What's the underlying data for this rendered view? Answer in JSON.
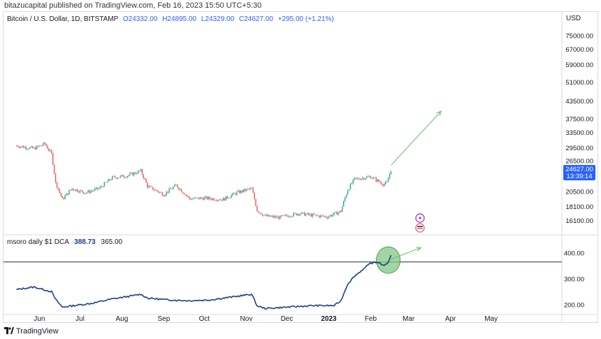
{
  "header": {
    "publisher": "bitazucapital published on TradingView.com, Feb 16, 2023 15:50 UTC+5:30",
    "symbol": "Bitcoin / U.S. Dollar, 1D, BITSTAMP",
    "open": "O24332.00",
    "high": "H24895.00",
    "low": "L24329.00",
    "close": "C24627.00",
    "change": "+295.00 (+1.21%)"
  },
  "price_axis": {
    "currency": "USD",
    "ticks": [
      "75000.00",
      "67000.00",
      "59000.00",
      "51000.00",
      "43500.00",
      "37500.00",
      "33500.00",
      "29500.00",
      "26500.00",
      "20500.00",
      "18100.00",
      "16100.00"
    ],
    "last_price": "24627.00",
    "countdown": "13:39:14"
  },
  "indicator": {
    "name": "msoro daily $1 DCA",
    "value1": "388.73",
    "value2": "365.00",
    "ticks": [
      "400.00",
      "300.00",
      "200.00"
    ]
  },
  "time_axis": [
    "Jun",
    "Jul",
    "Aug",
    "Sep",
    "Oct",
    "Nov",
    "Dec",
    "2023",
    "Feb",
    "Mar",
    "Apr",
    "May"
  ],
  "footer": {
    "brand": "TradingView"
  },
  "colors": {
    "up": "#26a69a",
    "down": "#ef5350",
    "dca_line": "#1f3c88",
    "arrow": "#66bb6a",
    "highlight_fill": "#81c784",
    "price_label": "#2962ff"
  },
  "chart_data": [
    {
      "type": "candlestick",
      "title": "Bitcoin / U.S. Dollar, 1D, BITSTAMP",
      "y_scale": "log",
      "ylim": [
        15500,
        80000
      ],
      "x": [
        "2022-05-15",
        "2022-05-28",
        "2022-06-05",
        "2022-06-10",
        "2022-06-13",
        "2022-06-18",
        "2022-06-25",
        "2022-07-05",
        "2022-07-15",
        "2022-07-25",
        "2022-08-05",
        "2022-08-15",
        "2022-08-20",
        "2022-09-01",
        "2022-09-10",
        "2022-09-20",
        "2022-10-01",
        "2022-10-15",
        "2022-10-25",
        "2022-11-05",
        "2022-11-09",
        "2022-11-15",
        "2022-11-25",
        "2022-12-10",
        "2022-12-20",
        "2022-12-31",
        "2023-01-10",
        "2023-01-15",
        "2023-01-20",
        "2023-02-01",
        "2023-02-10",
        "2023-02-13",
        "2023-02-16"
      ],
      "close": [
        30000,
        29300,
        30500,
        28000,
        22000,
        19200,
        21000,
        20300,
        21000,
        23000,
        23400,
        24300,
        21400,
        20000,
        21600,
        19300,
        19400,
        19200,
        20300,
        21000,
        17500,
        16700,
        16500,
        17100,
        16800,
        16600,
        17400,
        20800,
        22700,
        23200,
        21800,
        22000,
        24627
      ],
      "projection": {
        "from": [
          "2023-02-16",
          25500
        ],
        "to": [
          "2023-03-25",
          40000
        ]
      }
    },
    {
      "type": "line",
      "title": "msoro daily $1 DCA",
      "ylim": [
        175,
        440
      ],
      "x": [
        "2022-05-15",
        "2022-05-28",
        "2022-06-10",
        "2022-06-13",
        "2022-06-18",
        "2022-06-25",
        "2022-07-10",
        "2022-07-25",
        "2022-08-10",
        "2022-08-15",
        "2022-08-20",
        "2022-09-05",
        "2022-09-20",
        "2022-10-05",
        "2022-10-25",
        "2022-11-05",
        "2022-11-09",
        "2022-11-15",
        "2022-12-01",
        "2022-12-20",
        "2023-01-05",
        "2023-01-10",
        "2023-01-15",
        "2023-01-20",
        "2023-02-01",
        "2023-02-07",
        "2023-02-10",
        "2023-02-13",
        "2023-02-16"
      ],
      "values": [
        258,
        268,
        250,
        220,
        190,
        195,
        205,
        222,
        235,
        240,
        225,
        218,
        215,
        218,
        232,
        240,
        195,
        185,
        190,
        196,
        196,
        215,
        280,
        310,
        360,
        364,
        352,
        355,
        389
      ],
      "reference_level": 365,
      "projection": {
        "from": [
          "2023-02-16",
          375
        ],
        "to": [
          "2023-03-10",
          420
        ]
      }
    }
  ]
}
